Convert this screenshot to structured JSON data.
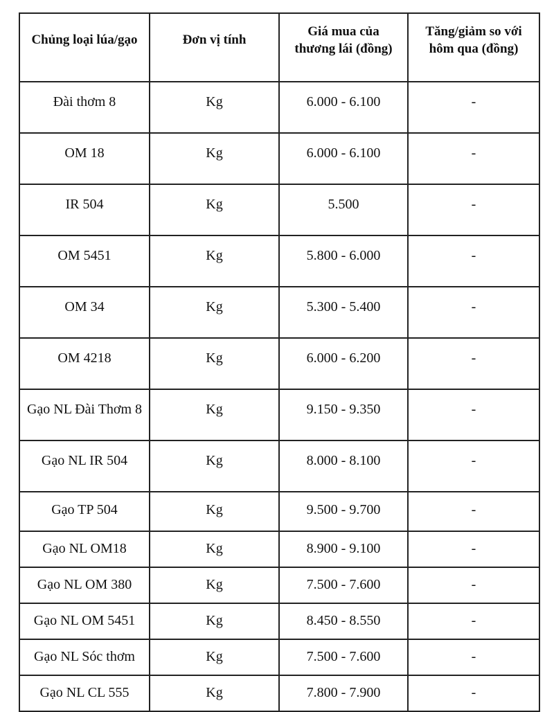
{
  "page": {
    "background_color": "#ffffff",
    "border_color": "#222222",
    "text_color": "#111111"
  },
  "table": {
    "columns": [
      {
        "key": "type",
        "label": "Chủng loại lúa/gạo"
      },
      {
        "key": "unit",
        "label": "Đơn vị tính"
      },
      {
        "key": "price",
        "label": "Giá mua của thương lái (đồng)"
      },
      {
        "key": "change",
        "label": "Tăng/giảm so với hôm qua (đồng)"
      }
    ],
    "rows": [
      {
        "type": "Đài thơm 8",
        "unit": "Kg",
        "price": "6.000 - 6.100",
        "change": "-"
      },
      {
        "type": "OM 18",
        "unit": "Kg",
        "price": "6.000 - 6.100",
        "change": "-"
      },
      {
        "type": "IR 504",
        "unit": "Kg",
        "price": "5.500",
        "change": "-"
      },
      {
        "type": "OM 5451",
        "unit": "Kg",
        "price": "5.800 - 6.000",
        "change": "-"
      },
      {
        "type": "OM 34",
        "unit": "Kg",
        "price": "5.300 - 5.400",
        "change": "-"
      },
      {
        "type": "OM 4218",
        "unit": "Kg",
        "price": "6.000 - 6.200",
        "change": "-"
      },
      {
        "type": "Gạo NL Đài Thơm 8",
        "unit": "Kg",
        "price": "9.150 - 9.350",
        "change": "-"
      },
      {
        "type": "Gạo NL IR 504",
        "unit": "Kg",
        "price": "8.000 - 8.100",
        "change": "-"
      },
      {
        "type": "Gạo TP 504",
        "unit": "Kg",
        "price": "9.500 - 9.700",
        "change": "-"
      },
      {
        "type": "Gạo NL OM18",
        "unit": "Kg",
        "price": "8.900 - 9.100",
        "change": "-"
      },
      {
        "type": "Gạo NL OM 380",
        "unit": "Kg",
        "price": "7.500 - 7.600",
        "change": "-"
      },
      {
        "type": "Gạo NL OM 5451",
        "unit": "Kg",
        "price": "8.450 - 8.550",
        "change": "-"
      },
      {
        "type": "Gạo NL Sóc thơm",
        "unit": "Kg",
        "price": "7.500 - 7.600",
        "change": "-"
      },
      {
        "type": "Gạo NL CL 555",
        "unit": "Kg",
        "price": "7.800 - 7.900",
        "change": "-"
      }
    ]
  }
}
